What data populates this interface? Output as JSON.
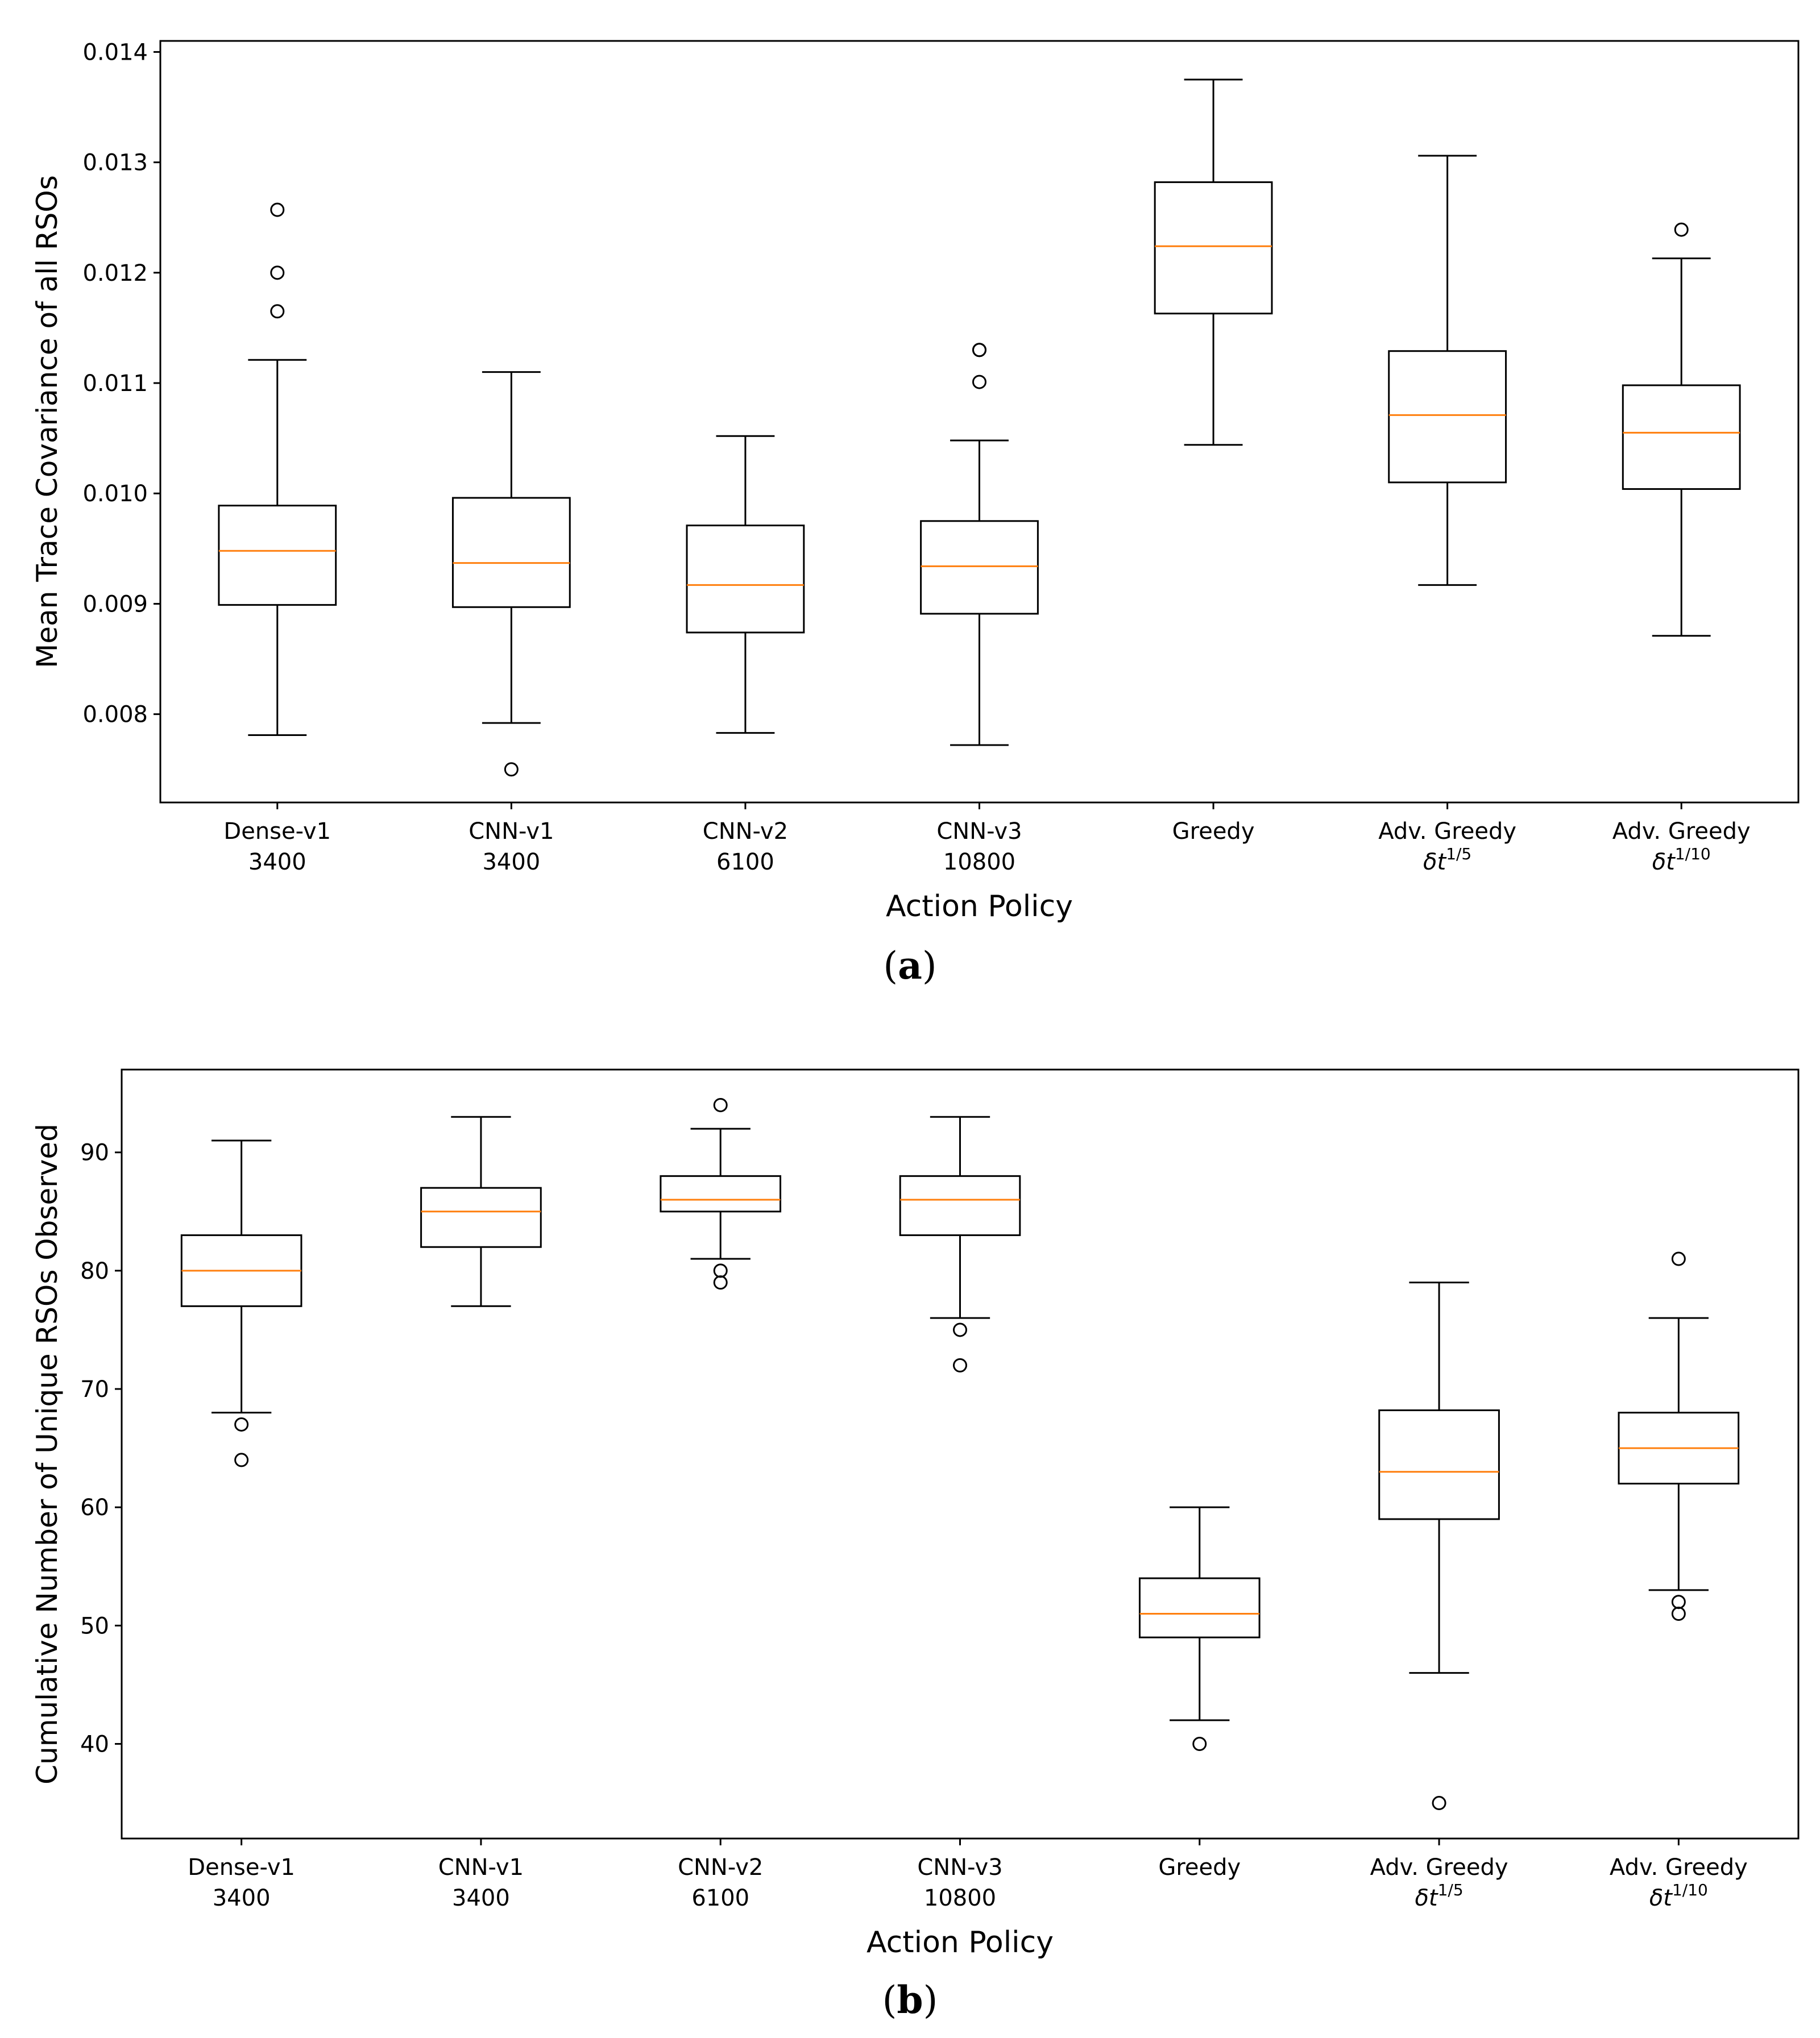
{
  "chart_data": [
    {
      "type": "box",
      "panel": "(a)",
      "caption_letter": "a",
      "ylabel": "Mean Trace Covariance of all RSOs",
      "xlabel": "Action Policy",
      "ylim": [
        0.0072,
        0.0141
      ],
      "yticks": [
        0.008,
        0.009,
        0.01,
        0.011,
        0.012,
        0.013,
        0.014
      ],
      "ytick_labels": [
        "0.008",
        "0.009",
        "0.010",
        "0.011",
        "0.012",
        "0.013",
        "0.014"
      ],
      "grid": false,
      "categories": [
        {
          "line1": "Dense-v1",
          "line2": "3400",
          "line2_sup": ""
        },
        {
          "line1": "CNN-v1",
          "line2": "3400",
          "line2_sup": ""
        },
        {
          "line1": "CNN-v2",
          "line2": "6100",
          "line2_sup": ""
        },
        {
          "line1": "CNN-v3",
          "line2": "10800",
          "line2_sup": ""
        },
        {
          "line1": "Greedy",
          "line2": "",
          "line2_sup": ""
        },
        {
          "line1": "Adv. Greedy",
          "line2": "δt",
          "line2_sup": "1/5"
        },
        {
          "line1": "Adv. Greedy",
          "line2": "δt",
          "line2_sup": "1/10"
        }
      ],
      "boxes": [
        {
          "whislo": 0.00781,
          "q1": 0.00899,
          "med": 0.00948,
          "q3": 0.00989,
          "whishi": 0.01121,
          "fliers": [
            0.01257,
            0.012,
            0.01165
          ]
        },
        {
          "whislo": 0.00792,
          "q1": 0.00897,
          "med": 0.00937,
          "q3": 0.00996,
          "whishi": 0.0111,
          "fliers": [
            0.0075
          ]
        },
        {
          "whislo": 0.00783,
          "q1": 0.00874,
          "med": 0.00917,
          "q3": 0.00971,
          "whishi": 0.01052,
          "fliers": []
        },
        {
          "whislo": 0.00772,
          "q1": 0.00891,
          "med": 0.00934,
          "q3": 0.00975,
          "whishi": 0.01048,
          "fliers": [
            0.0113,
            0.0113,
            0.01101
          ]
        },
        {
          "whislo": 0.01044,
          "q1": 0.01163,
          "med": 0.01224,
          "q3": 0.01282,
          "whishi": 0.01375,
          "fliers": []
        },
        {
          "whislo": 0.00917,
          "q1": 0.0101,
          "med": 0.01071,
          "q3": 0.01129,
          "whishi": 0.01306,
          "fliers": []
        },
        {
          "whislo": 0.00871,
          "q1": 0.01004,
          "med": 0.01055,
          "q3": 0.01098,
          "whishi": 0.01213,
          "fliers": [
            0.01239
          ]
        }
      ]
    },
    {
      "type": "box",
      "panel": "(b)",
      "caption_letter": "b",
      "ylabel": "Cumulative Number of Unique RSOs Observed",
      "xlabel": "Action Policy",
      "ylim": [
        32,
        97
      ],
      "yticks": [
        40,
        50,
        60,
        70,
        80,
        90
      ],
      "ytick_labels": [
        "40",
        "50",
        "60",
        "70",
        "80",
        "90"
      ],
      "grid": false,
      "categories": [
        {
          "line1": "Dense-v1",
          "line2": "3400",
          "line2_sup": ""
        },
        {
          "line1": "CNN-v1",
          "line2": "3400",
          "line2_sup": ""
        },
        {
          "line1": "CNN-v2",
          "line2": "6100",
          "line2_sup": ""
        },
        {
          "line1": "CNN-v3",
          "line2": "10800",
          "line2_sup": ""
        },
        {
          "line1": "Greedy",
          "line2": "",
          "line2_sup": ""
        },
        {
          "line1": "Adv. Greedy",
          "line2": "δt",
          "line2_sup": "1/5"
        },
        {
          "line1": "Adv. Greedy",
          "line2": "δt",
          "line2_sup": "1/10"
        }
      ],
      "boxes": [
        {
          "whislo": 68,
          "q1": 77,
          "med": 80,
          "q3": 83,
          "whishi": 91,
          "fliers": [
            67,
            64
          ]
        },
        {
          "whislo": 77,
          "q1": 82,
          "med": 85,
          "q3": 87,
          "whishi": 93,
          "fliers": []
        },
        {
          "whislo": 81,
          "q1": 85,
          "med": 86,
          "q3": 88,
          "whishi": 92,
          "fliers": [
            94,
            80,
            79
          ]
        },
        {
          "whislo": 76,
          "q1": 83,
          "med": 86,
          "q3": 88,
          "whishi": 93,
          "fliers": [
            75,
            72
          ]
        },
        {
          "whislo": 42,
          "q1": 49,
          "med": 51,
          "q3": 54,
          "whishi": 60,
          "fliers": [
            40
          ]
        },
        {
          "whislo": 46,
          "q1": 59,
          "med": 63,
          "q3": 68.2,
          "whishi": 79,
          "fliers": [
            35
          ]
        },
        {
          "whislo": 53,
          "q1": 62,
          "med": 65,
          "q3": 68,
          "whishi": 76,
          "fliers": [
            81,
            52,
            51
          ]
        }
      ]
    }
  ],
  "colors": {
    "median": "#ff7f0e",
    "box": "#000000"
  }
}
